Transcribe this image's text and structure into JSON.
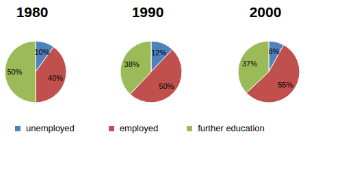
{
  "chart_data": [
    {
      "type": "pie",
      "title": "1980",
      "categories": [
        "unemployed",
        "employed",
        "further education"
      ],
      "values": [
        10,
        40,
        50
      ],
      "value_labels": [
        "10%",
        "40%",
        "50%"
      ],
      "colors": [
        "#4f81bd",
        "#c0504d",
        "#9bbb59"
      ],
      "data_labels": true,
      "legend": "bottom"
    },
    {
      "type": "pie",
      "title": "1990",
      "categories": [
        "unemployed",
        "employed",
        "further education"
      ],
      "values": [
        12,
        50,
        38
      ],
      "value_labels": [
        "12%",
        "50%",
        "38%"
      ],
      "colors": [
        "#4f81bd",
        "#c0504d",
        "#9bbb59"
      ],
      "data_labels": true,
      "legend": "bottom"
    },
    {
      "type": "pie",
      "title": "2000",
      "categories": [
        "unemployed",
        "employed",
        "further education"
      ],
      "values": [
        8,
        55,
        37
      ],
      "value_labels": [
        "8%",
        "55%",
        "37%"
      ],
      "colors": [
        "#4f81bd",
        "#c0504d",
        "#9bbb59"
      ],
      "data_labels": true,
      "legend": "bottom"
    }
  ]
}
